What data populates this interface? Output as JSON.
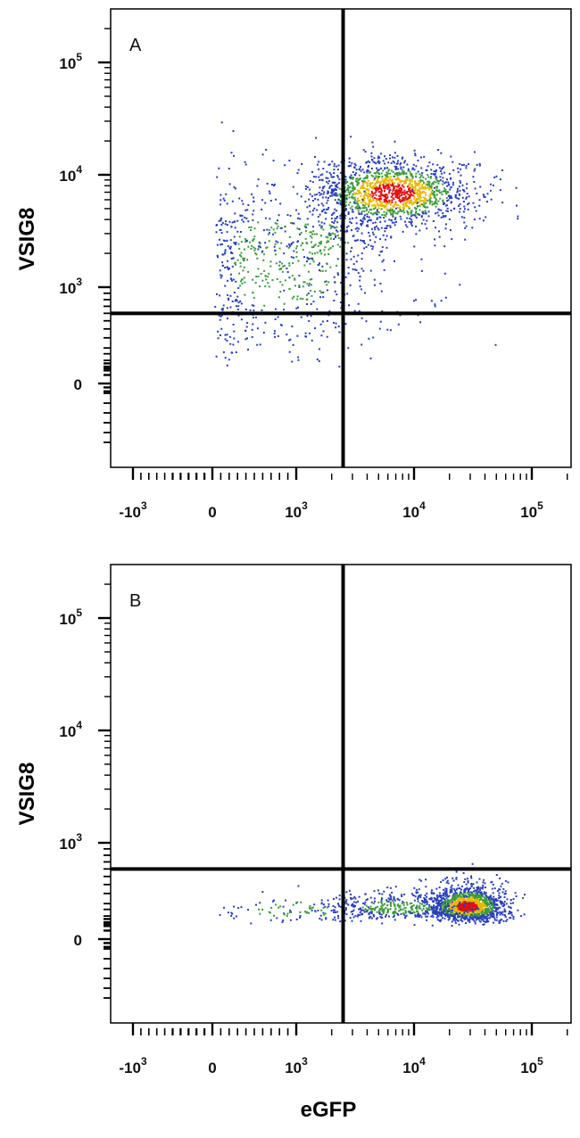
{
  "chart_data": [
    {
      "type": "scatter",
      "panel_label": "A",
      "xlabel": "",
      "ylabel": "VSIG8",
      "x_scale": "biexponential",
      "y_scale": "biexponential",
      "xlim": [
        -2000,
        250000
      ],
      "ylim": [
        -300,
        250000
      ],
      "x_ticks": [
        {
          "value": -1000,
          "base": "-10",
          "exp": "3"
        },
        {
          "value": 0,
          "base": "0",
          "exp": ""
        },
        {
          "value": 1000,
          "base": "10",
          "exp": "3"
        },
        {
          "value": 10000,
          "base": "10",
          "exp": "4"
        },
        {
          "value": 100000,
          "base": "10",
          "exp": "5"
        }
      ],
      "y_ticks": [
        {
          "value": 0,
          "base": "0",
          "exp": ""
        },
        {
          "value": 1000,
          "base": "10",
          "exp": "3"
        },
        {
          "value": 10000,
          "base": "10",
          "exp": "4"
        },
        {
          "value": 100000,
          "base": "10",
          "exp": "5"
        }
      ],
      "quadrant_gates": {
        "x": 2500,
        "y": 600
      },
      "populations": [
        {
          "x_center": 6500,
          "y_center": 7000,
          "x_spread": 0.34,
          "y_spread": 0.15,
          "count": 1500
        },
        {
          "x_center": 750,
          "y_center": 1700,
          "x_spread": 0.55,
          "y_spread": 0.45,
          "count": 650
        },
        {
          "x_center": 1700,
          "y_center": 2600,
          "x_spread": 0.25,
          "y_spread": 0.18,
          "count": 160
        }
      ]
    },
    {
      "type": "scatter",
      "panel_label": "B",
      "xlabel": "eGFP",
      "ylabel": "VSIG8",
      "x_scale": "biexponential",
      "y_scale": "biexponential",
      "xlim": [
        -2000,
        250000
      ],
      "ylim": [
        -300,
        250000
      ],
      "x_ticks": [
        {
          "value": -1000,
          "base": "-10",
          "exp": "3"
        },
        {
          "value": 0,
          "base": "0",
          "exp": ""
        },
        {
          "value": 1000,
          "base": "10",
          "exp": "3"
        },
        {
          "value": 10000,
          "base": "10",
          "exp": "4"
        },
        {
          "value": 100000,
          "base": "10",
          "exp": "5"
        }
      ],
      "y_ticks": [
        {
          "value": 0,
          "base": "0",
          "exp": ""
        },
        {
          "value": 1000,
          "base": "10",
          "exp": "3"
        },
        {
          "value": 10000,
          "base": "10",
          "exp": "4"
        },
        {
          "value": 100000,
          "base": "10",
          "exp": "5"
        }
      ],
      "quadrant_gates": {
        "x": 2500,
        "y": 600
      },
      "populations": [
        {
          "x_center": 28000,
          "y_center": 180,
          "x_spread": 0.16,
          "y_spread": 0.18,
          "count": 1500
        },
        {
          "x_center": 7000,
          "y_center": 170,
          "x_spread": 0.35,
          "y_spread": 0.16,
          "count": 420
        },
        {
          "x_center": 1000,
          "y_center": 150,
          "x_spread": 0.4,
          "y_spread": 0.2,
          "count": 80
        }
      ]
    }
  ],
  "colors": {
    "frame": "#000000",
    "gate": "#000000",
    "density_low": "#2a3fb8",
    "density_mid": "#3c9a3c",
    "density_high": "#e6b800",
    "density_peak": "#e01010"
  }
}
